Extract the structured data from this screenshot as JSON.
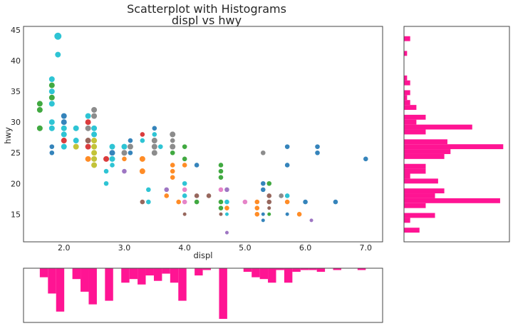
{
  "chart_data": [
    {
      "type": "scatter",
      "title": "Scatterplot with Histograms",
      "subtitle": "displ vs hwy",
      "xlabel": "displ",
      "ylabel": "hwy",
      "xlim": [
        1.33,
        7.28
      ],
      "ylim": [
        10.5,
        45.6
      ],
      "xticks": [
        "2.0",
        "3.0",
        "4.0",
        "5.0",
        "6.0",
        "7.0"
      ],
      "yticks": [
        "15",
        "20",
        "25",
        "30",
        "35",
        "40",
        "45"
      ],
      "grid": false,
      "palette": {
        "b": "#1f77b4",
        "o": "#ff7f0e",
        "g": "#2ca02c",
        "r": "#d62728",
        "p": "#9467bd",
        "n": "#8c564b",
        "k": "#e377c2",
        "y": "#7f7f7f",
        "l": "#bcbd22",
        "c": "#17becf"
      },
      "points": [
        [
          1.6,
          33,
          "g",
          2
        ],
        [
          1.6,
          32,
          "g",
          2
        ],
        [
          1.6,
          29,
          "g",
          2
        ],
        [
          1.8,
          37,
          "c",
          2
        ],
        [
          1.8,
          36,
          "g",
          2
        ],
        [
          1.8,
          35,
          "c",
          2
        ],
        [
          1.8,
          34,
          "g",
          2
        ],
        [
          1.8,
          33,
          "c",
          2
        ],
        [
          1.8,
          30,
          "c",
          2
        ],
        [
          1.8,
          29,
          "c",
          2
        ],
        [
          1.8,
          26,
          "b",
          1
        ],
        [
          1.8,
          25,
          "b",
          1
        ],
        [
          1.9,
          44,
          "c",
          3
        ],
        [
          1.9,
          41,
          "c",
          2
        ],
        [
          2.0,
          31,
          "b",
          2
        ],
        [
          2.0,
          30,
          "b",
          2
        ],
        [
          2.0,
          29,
          "c",
          2
        ],
        [
          2.0,
          28,
          "c",
          2
        ],
        [
          2.0,
          27,
          "r",
          2
        ],
        [
          2.0,
          26,
          "c",
          2
        ],
        [
          2.2,
          29,
          "c",
          2
        ],
        [
          2.2,
          27,
          "c",
          2
        ],
        [
          2.2,
          26,
          "l",
          2
        ],
        [
          2.4,
          31,
          "c",
          2
        ],
        [
          2.4,
          30,
          "r",
          2
        ],
        [
          2.4,
          29,
          "y",
          2
        ],
        [
          2.4,
          27,
          "n",
          2
        ],
        [
          2.4,
          26,
          "r",
          2
        ],
        [
          2.4,
          24,
          "o",
          2
        ],
        [
          2.5,
          32,
          "y",
          2
        ],
        [
          2.5,
          31,
          "y",
          2
        ],
        [
          2.5,
          29,
          "c",
          2
        ],
        [
          2.5,
          28,
          "c",
          2
        ],
        [
          2.5,
          27,
          "l",
          2
        ],
        [
          2.5,
          26,
          "l",
          2
        ],
        [
          2.5,
          25,
          "l",
          2
        ],
        [
          2.5,
          24,
          "l",
          2
        ],
        [
          2.5,
          23,
          "l",
          2
        ],
        [
          2.7,
          24,
          "r",
          2
        ],
        [
          2.7,
          22,
          "c",
          1
        ],
        [
          2.7,
          20,
          "c",
          1
        ],
        [
          2.8,
          26,
          "c",
          2
        ],
        [
          2.8,
          25,
          "b",
          2
        ],
        [
          2.8,
          24,
          "c",
          2
        ],
        [
          2.8,
          23,
          "c",
          1
        ],
        [
          3.0,
          26,
          "c",
          2
        ],
        [
          3.0,
          25,
          "y",
          2
        ],
        [
          3.0,
          24,
          "o",
          1
        ],
        [
          3.0,
          22,
          "p",
          1
        ],
        [
          3.1,
          27,
          "b",
          1
        ],
        [
          3.1,
          26,
          "y",
          2
        ],
        [
          3.1,
          25,
          "b",
          1
        ],
        [
          3.3,
          28,
          "r",
          1
        ],
        [
          3.3,
          27,
          "c",
          1
        ],
        [
          3.3,
          24,
          "o",
          2
        ],
        [
          3.3,
          22,
          "o",
          2
        ],
        [
          3.3,
          17,
          "n",
          1
        ],
        [
          3.4,
          19,
          "c",
          1
        ],
        [
          3.4,
          17,
          "c",
          1
        ],
        [
          3.5,
          29,
          "b",
          1
        ],
        [
          3.5,
          28,
          "c",
          1
        ],
        [
          3.5,
          27,
          "y",
          2
        ],
        [
          3.5,
          26,
          "y",
          2
        ],
        [
          3.5,
          25,
          "y",
          2
        ],
        [
          3.6,
          26,
          "c",
          1
        ],
        [
          3.7,
          19,
          "p",
          1
        ],
        [
          3.7,
          18,
          "o",
          1
        ],
        [
          3.8,
          28,
          "y",
          2
        ],
        [
          3.8,
          27,
          "y",
          1
        ],
        [
          3.8,
          26,
          "y",
          2
        ],
        [
          3.8,
          25,
          "g",
          1
        ],
        [
          3.8,
          23,
          "o",
          1
        ],
        [
          3.8,
          22,
          "o",
          1
        ],
        [
          3.8,
          21,
          "o",
          1
        ],
        [
          3.9,
          17,
          "o",
          1
        ],
        [
          4.0,
          26,
          "g",
          1
        ],
        [
          4.0,
          24,
          "g",
          1
        ],
        [
          4.0,
          23,
          "o",
          1
        ],
        [
          4.0,
          20,
          "c",
          1
        ],
        [
          4.0,
          19,
          "k",
          1
        ],
        [
          4.0,
          18,
          "c",
          1
        ],
        [
          4.0,
          17,
          "k",
          1
        ],
        [
          4.0,
          15,
          "n",
          0
        ],
        [
          4.2,
          23,
          "b",
          1
        ],
        [
          4.2,
          18,
          "n",
          1
        ],
        [
          4.2,
          17,
          "g",
          1
        ],
        [
          4.4,
          18,
          "n",
          1
        ],
        [
          4.6,
          23,
          "g",
          1
        ],
        [
          4.6,
          22,
          "g",
          1
        ],
        [
          4.6,
          21,
          "g",
          1
        ],
        [
          4.6,
          19,
          "k",
          1
        ],
        [
          4.6,
          17,
          "g",
          1
        ],
        [
          4.6,
          16,
          "g",
          1
        ],
        [
          4.6,
          15,
          "n",
          0
        ],
        [
          4.7,
          19,
          "p",
          1
        ],
        [
          4.7,
          17,
          "c",
          1
        ],
        [
          4.7,
          16,
          "o",
          1
        ],
        [
          4.7,
          15,
          "c",
          0
        ],
        [
          4.7,
          12,
          "p",
          0
        ],
        [
          5.0,
          17,
          "k",
          1
        ],
        [
          5.2,
          17,
          "o",
          1
        ],
        [
          5.2,
          16,
          "o",
          1
        ],
        [
          5.2,
          15,
          "o",
          1
        ],
        [
          5.3,
          25,
          "y",
          1
        ],
        [
          5.3,
          20,
          "b",
          1
        ],
        [
          5.3,
          19,
          "b",
          1
        ],
        [
          5.3,
          15,
          "b",
          0
        ],
        [
          5.3,
          14,
          "b",
          0
        ],
        [
          5.4,
          20,
          "g",
          1
        ],
        [
          5.4,
          18,
          "n",
          1
        ],
        [
          5.4,
          17,
          "n",
          1
        ],
        [
          5.4,
          16,
          "n",
          0
        ],
        [
          5.4,
          15,
          "g",
          0
        ],
        [
          5.6,
          18,
          "y",
          1
        ],
        [
          5.7,
          26,
          "b",
          1
        ],
        [
          5.7,
          23,
          "b",
          1
        ],
        [
          5.7,
          18,
          "c",
          1
        ],
        [
          5.7,
          17,
          "o",
          1
        ],
        [
          5.7,
          15,
          "b",
          0
        ],
        [
          5.9,
          15,
          "o",
          1
        ],
        [
          6.0,
          17,
          "b",
          1
        ],
        [
          6.1,
          14,
          "p",
          0
        ],
        [
          6.2,
          26,
          "b",
          1
        ],
        [
          6.2,
          25,
          "b",
          1
        ],
        [
          6.5,
          17,
          "b",
          1
        ],
        [
          7.0,
          24,
          "b",
          1
        ]
      ]
    },
    {
      "type": "bar",
      "orientation": "horizontal",
      "variable": "hwy",
      "color": "#ff1493",
      "bins": {
        "start": 12,
        "end": 44,
        "count": 40
      },
      "values": [
        5,
        0,
        2,
        10,
        0,
        7,
        31,
        10,
        13,
        0,
        11,
        2,
        7,
        7,
        0,
        13,
        15,
        32,
        14,
        0,
        7,
        22,
        4,
        7,
        0,
        4,
        2,
        1,
        2,
        0,
        2,
        1,
        0,
        0,
        0,
        0,
        1,
        0,
        0,
        2
      ],
      "xlim": [
        0,
        34
      ]
    },
    {
      "type": "bar",
      "orientation": "vertical-inverted",
      "variable": "displ",
      "color": "#ff1493",
      "bins": {
        "start": 1.6,
        "end": 7.0,
        "count": 40
      },
      "values": [
        5,
        14,
        24,
        0,
        6,
        13,
        20,
        0,
        18,
        0,
        8,
        6,
        9,
        4,
        7,
        3,
        8,
        18,
        0,
        4,
        1,
        0,
        32,
        0,
        0,
        2,
        5,
        6,
        8,
        1,
        8,
        2,
        1,
        1,
        2,
        0,
        1,
        0,
        0,
        1
      ],
      "ylim": [
        0,
        30
      ]
    }
  ]
}
